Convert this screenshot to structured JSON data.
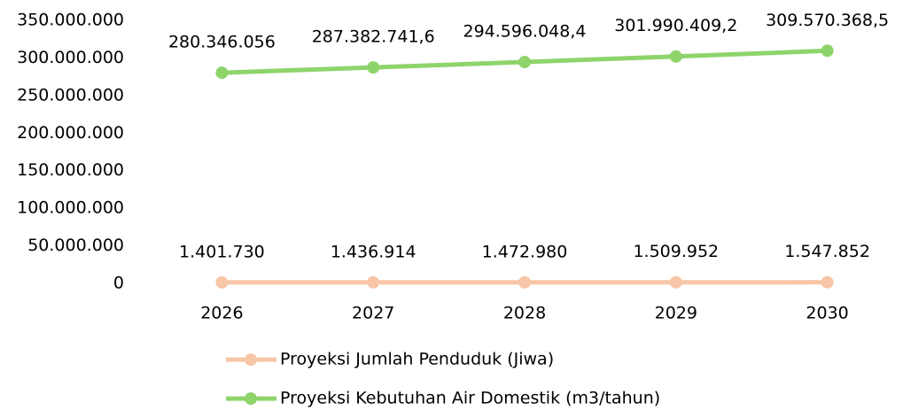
{
  "chart_data": {
    "type": "line",
    "categories": [
      "2026",
      "2027",
      "2028",
      "2029",
      "2030"
    ],
    "series": [
      {
        "name": "Proyeksi Jumlah Penduduk (Jiwa)",
        "color": "#f7c6a6",
        "values": [
          1401730,
          1436914,
          1472980,
          1509952,
          1547852
        ],
        "value_labels": [
          "1.401.730",
          "1.436.914",
          "1.472.980",
          "1.509.952",
          "1.547.852"
        ]
      },
      {
        "name": "Proyeksi Kebutuhan Air Domestik (m3/tahun)",
        "color": "#8ed46b",
        "values": [
          280346056,
          287382741.6,
          294596048.4,
          301990409.2,
          309570368.5
        ],
        "value_labels": [
          "280.346.056",
          "287.382.741,6",
          "294.596.048,4",
          "301.990.409,2",
          "309.570.368,5"
        ]
      }
    ],
    "ylim": [
      0,
      350000000
    ],
    "yticks": [
      0,
      {
        "value": 50000000,
        "label": "50.000.000"
      },
      {
        "value": 100000000,
        "label": "100.000.000"
      },
      {
        "value": 150000000,
        "label": "150.000.000"
      },
      {
        "value": 200000000,
        "label": "200.000.000"
      },
      {
        "value": 250000000,
        "label": "250.000.000"
      },
      {
        "value": 300000000,
        "label": "300.000.000"
      },
      {
        "value": 350000000,
        "label": "350.000.000"
      }
    ],
    "grid": false,
    "legend": "bottom"
  }
}
